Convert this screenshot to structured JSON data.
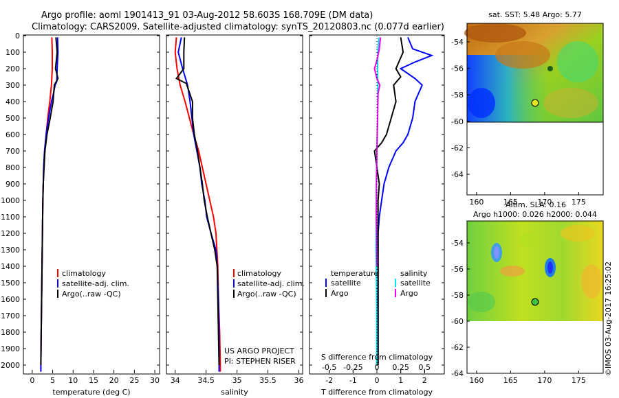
{
  "title_line1": "Argo profile: aoml 1901413_91 03-Aug-2012 58.603S 168.709E (DM data)",
  "title_line2": "Climatology: CARS2009. Satellite-adjusted climatology: synTS_20120803.nc (0.077d earlier)",
  "colors": {
    "climatology": "#ff0000",
    "satellite": "#0000ff",
    "argo": "#000000",
    "sal_satellite": "#00e5ee",
    "sal_argo": "#ee00ee"
  },
  "depth_ticks": [
    "0",
    "100",
    "200",
    "300",
    "400",
    "500",
    "600",
    "700",
    "800",
    "900",
    "1000",
    "1100",
    "1200",
    "1300",
    "1400",
    "1500",
    "1600",
    "1700",
    "1800",
    "1900",
    "2000"
  ],
  "panels": {
    "temperature": {
      "xlabel": "temperature (deg C)",
      "xticks": [
        "0",
        "5",
        "10",
        "15",
        "20",
        "25",
        "30"
      ],
      "legend": [
        "climatology",
        "satellite-adj. clim.",
        "Argo(..raw -QC)"
      ]
    },
    "salinity": {
      "xlabel": "salinity",
      "xticks": [
        "34",
        "34.5",
        "35",
        "35.5",
        "36"
      ],
      "legend": [
        "climatology",
        "satellite-adj. clim.",
        "Argo(..raw -QC)"
      ],
      "credit1": "US ARGO PROJECT",
      "credit2": "PI: STEPHEN RISER"
    },
    "difference": {
      "xlabel": "T difference from climatology",
      "top_axis_label": "S difference from climatology",
      "xticks_bottom": [
        "-2",
        "-1",
        "0",
        "1",
        "2"
      ],
      "xticks_top": [
        "-0.5",
        "-0.25",
        "0",
        "0.25",
        "0.5"
      ],
      "legend_temp_title": "temperature",
      "legend_sal_title": "salinity",
      "legend_temp": [
        "satellite",
        "Argo"
      ],
      "legend_sal": [
        "satellite",
        "Argo"
      ]
    }
  },
  "maps": {
    "sst": {
      "title": "sat. SST: 5.48 Argo: 5.77"
    },
    "sla": {
      "title1": "Altim. SLA: 0.16",
      "title2": "Argo h1000: 0.026 h2000: 0.044"
    },
    "xticks": [
      "160",
      "165",
      "170",
      "175"
    ],
    "yticks": [
      "-54",
      "-56",
      "-58",
      "-60",
      "-62",
      "-64"
    ]
  },
  "watermark": "©IMOS 03-Aug-2017 16:25:02",
  "chart_data": [
    {
      "type": "line",
      "xlabel": "temperature (deg C)",
      "xlim": [
        -2,
        31
      ],
      "ylim": [
        2050,
        0
      ],
      "series": [
        {
          "name": "climatology",
          "color": "#ff0000",
          "points": [
            [
              4.8,
              10
            ],
            [
              4.9,
              100
            ],
            [
              4.9,
              200
            ],
            [
              4.7,
              300
            ],
            [
              4.3,
              400
            ],
            [
              3.8,
              500
            ],
            [
              3.4,
              600
            ],
            [
              3.1,
              700
            ],
            [
              2.8,
              800
            ],
            [
              2.7,
              900
            ],
            [
              2.6,
              1000
            ],
            [
              2.5,
              1200
            ],
            [
              2.4,
              1400
            ],
            [
              2.3,
              1600
            ],
            [
              2.2,
              1800
            ],
            [
              2.1,
              2000
            ],
            [
              2.1,
              2040
            ]
          ]
        },
        {
          "name": "satellite-adj. clim.",
          "color": "#0000ff",
          "points": [
            [
              6.2,
              10
            ],
            [
              6.3,
              100
            ],
            [
              6.1,
              200
            ],
            [
              6.0,
              280
            ],
            [
              5.6,
              300
            ],
            [
              5.2,
              350
            ],
            [
              4.7,
              400
            ],
            [
              4.0,
              500
            ],
            [
              3.4,
              600
            ],
            [
              3.0,
              700
            ],
            [
              2.8,
              800
            ],
            [
              2.7,
              900
            ],
            [
              2.6,
              1000
            ],
            [
              2.5,
              1200
            ],
            [
              2.4,
              1400
            ],
            [
              2.3,
              1600
            ],
            [
              2.2,
              1800
            ],
            [
              2.1,
              2000
            ],
            [
              2.1,
              2040
            ]
          ]
        },
        {
          "name": "Argo(..raw -QC)",
          "color": "#000000",
          "points": [
            [
              5.8,
              10
            ],
            [
              6.1,
              100
            ],
            [
              5.7,
              200
            ],
            [
              6.3,
              260
            ],
            [
              5.4,
              300
            ],
            [
              5.1,
              400
            ],
            [
              4.4,
              500
            ],
            [
              3.6,
              600
            ],
            [
              3.1,
              700
            ],
            [
              2.9,
              800
            ],
            [
              2.7,
              900
            ],
            [
              2.6,
              1000
            ],
            [
              2.5,
              1200
            ],
            [
              2.4,
              1400
            ],
            [
              2.3,
              1600
            ],
            [
              2.2,
              1800
            ],
            [
              2.1,
              2000
            ]
          ]
        }
      ]
    },
    {
      "type": "line",
      "xlabel": "salinity",
      "xlim": [
        33.87,
        36.05
      ],
      "ylim": [
        2050,
        0
      ],
      "series": [
        {
          "name": "climatology",
          "color": "#ff0000",
          "points": [
            [
              34.02,
              10
            ],
            [
              34.0,
              100
            ],
            [
              34.03,
              200
            ],
            [
              34.08,
              300
            ],
            [
              34.16,
              400
            ],
            [
              34.23,
              500
            ],
            [
              34.3,
              600
            ],
            [
              34.38,
              700
            ],
            [
              34.44,
              800
            ],
            [
              34.5,
              900
            ],
            [
              34.56,
              1000
            ],
            [
              34.62,
              1100
            ],
            [
              34.66,
              1200
            ],
            [
              34.69,
              1400
            ],
            [
              34.7,
              1600
            ],
            [
              34.72,
              1800
            ],
            [
              34.73,
              2000
            ],
            [
              34.73,
              2040
            ]
          ]
        },
        {
          "name": "satellite-adj. clim.",
          "color": "#0000ff",
          "points": [
            [
              34.1,
              10
            ],
            [
              34.05,
              100
            ],
            [
              34.12,
              200
            ],
            [
              34.2,
              300
            ],
            [
              34.24,
              400
            ],
            [
              34.27,
              500
            ],
            [
              34.3,
              600
            ],
            [
              34.35,
              700
            ],
            [
              34.4,
              800
            ],
            [
              34.43,
              900
            ],
            [
              34.48,
              1000
            ],
            [
              34.51,
              1100
            ],
            [
              34.58,
              1200
            ],
            [
              34.66,
              1300
            ],
            [
              34.68,
              1400
            ],
            [
              34.7,
              1600
            ],
            [
              34.71,
              1800
            ],
            [
              34.71,
              2000
            ],
            [
              34.71,
              2040
            ]
          ]
        },
        {
          "name": "Argo(..raw -QC)",
          "color": "#000000",
          "points": [
            [
              34.15,
              10
            ],
            [
              34.14,
              100
            ],
            [
              34.14,
              200
            ],
            [
              34.02,
              260
            ],
            [
              34.18,
              290
            ],
            [
              34.28,
              400
            ],
            [
              34.28,
              500
            ],
            [
              34.31,
              600
            ],
            [
              34.36,
              700
            ],
            [
              34.4,
              800
            ],
            [
              34.44,
              900
            ],
            [
              34.47,
              1000
            ],
            [
              34.52,
              1100
            ],
            [
              34.58,
              1200
            ],
            [
              34.64,
              1300
            ],
            [
              34.68,
              1400
            ],
            [
              34.69,
              1600
            ],
            [
              34.7,
              1800
            ],
            [
              34.71,
              2000
            ]
          ]
        }
      ]
    },
    {
      "type": "line",
      "xlabel": "T difference from climatology",
      "xlim": [
        -2.8,
        2.8
      ],
      "ylim": [
        2050,
        0
      ],
      "series": [
        {
          "name": "temperature satellite",
          "color": "#0000ff",
          "points": [
            [
              1.3,
              10
            ],
            [
              1.5,
              80
            ],
            [
              2.3,
              120
            ],
            [
              1.6,
              160
            ],
            [
              1.0,
              200
            ],
            [
              1.6,
              260
            ],
            [
              1.9,
              300
            ],
            [
              1.6,
              400
            ],
            [
              1.5,
              500
            ],
            [
              1.3,
              600
            ],
            [
              1.1,
              650
            ],
            [
              0.8,
              700
            ],
            [
              0.5,
              800
            ],
            [
              0.3,
              900
            ],
            [
              0.2,
              1000
            ],
            [
              0.1,
              1100
            ],
            [
              0.05,
              1200
            ],
            [
              0.05,
              1600
            ],
            [
              0.05,
              2000
            ]
          ]
        },
        {
          "name": "temperature Argo",
          "color": "#000000",
          "points": [
            [
              1.0,
              10
            ],
            [
              1.1,
              100
            ],
            [
              0.8,
              200
            ],
            [
              1.0,
              250
            ],
            [
              0.7,
              300
            ],
            [
              0.8,
              400
            ],
            [
              0.6,
              500
            ],
            [
              0.4,
              600
            ],
            [
              0.2,
              650
            ],
            [
              -0.1,
              700
            ],
            [
              0.0,
              800
            ],
            [
              0.1,
              900
            ],
            [
              0.05,
              1000
            ],
            [
              0.05,
              1200
            ],
            [
              0.05,
              1600
            ],
            [
              0.05,
              2000
            ]
          ]
        },
        {
          "name": "salinity satellite",
          "color": "#00e5ee",
          "points": [
            [
              0.08,
              10
            ],
            [
              0.04,
              100
            ],
            [
              0.03,
              200
            ],
            [
              0.04,
              300
            ],
            [
              0.03,
              500
            ],
            [
              0.0,
              700
            ],
            [
              -0.02,
              900
            ],
            [
              -0.03,
              1100
            ],
            [
              -0.04,
              1300
            ],
            [
              -0.02,
              1500
            ],
            [
              -0.01,
              1700
            ],
            [
              -0.01,
              1900
            ],
            [
              -0.01,
              2000
            ]
          ]
        },
        {
          "name": "salinity Argo",
          "color": "#ee00ee",
          "points": [
            [
              0.15,
              10
            ],
            [
              0.1,
              80
            ],
            [
              0.0,
              150
            ],
            [
              -0.1,
              200
            ],
            [
              0.0,
              260
            ],
            [
              0.12,
              300
            ],
            [
              0.05,
              350
            ],
            [
              0.03,
              500
            ],
            [
              0.0,
              700
            ],
            [
              -0.02,
              900
            ],
            [
              -0.02,
              1000
            ],
            [
              -0.03,
              1100
            ],
            [
              -0.01,
              1200
            ],
            [
              0.0,
              1400
            ]
          ]
        }
      ]
    }
  ]
}
